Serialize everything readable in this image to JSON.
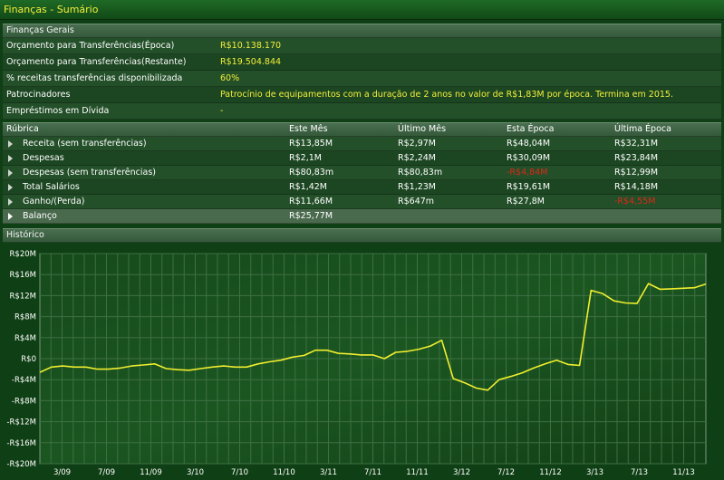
{
  "title": "Finanças - Sumário",
  "general": {
    "header": "Finanças Gerais",
    "rows": [
      {
        "label": "Orçamento para Transferências(Época)",
        "value": "R$10.138.170"
      },
      {
        "label": "Orçamento para Transferências(Restante)",
        "value": "R$19.504.844"
      },
      {
        "label": "% receitas transferências disponibilizada",
        "value": "60%"
      },
      {
        "label": "Patrocinadores",
        "value": "Patrocínio de equipamentos com a duração de 2 anos no valor de R$1,83M por época. Termina em 2015."
      },
      {
        "label": "Empréstimos em Dívida",
        "value": "-"
      }
    ]
  },
  "table": {
    "columns": [
      "Rúbrica",
      "Este Mês",
      "Último Mês",
      "Esta Época",
      "Última Época"
    ],
    "rows": [
      {
        "name": "Receita (sem transferências)",
        "este_mes": "R$13,85M",
        "ultimo_mes": "R$2,97M",
        "esta_epoca": "R$48,04M",
        "ultima_epoca": "R$32,31M"
      },
      {
        "name": "Despesas",
        "este_mes": "R$2,1M",
        "ultimo_mes": "R$2,24M",
        "esta_epoca": "R$30,09M",
        "ultima_epoca": "R$23,84M"
      },
      {
        "name": "Despesas (sem transferências)",
        "este_mes": "R$80,83m",
        "ultimo_mes": "R$80,83m",
        "esta_epoca": "-R$4,84M",
        "ultima_epoca": "R$12,99M"
      },
      {
        "name": "Total Salários",
        "este_mes": "R$1,42M",
        "ultimo_mes": "R$1,23M",
        "esta_epoca": "R$19,61M",
        "ultima_epoca": "R$14,18M"
      },
      {
        "name": "Ganho/(Perda)",
        "este_mes": "R$11,66M",
        "ultimo_mes": "R$647m",
        "esta_epoca": "R$27,8M",
        "ultima_epoca": "-R$4,55M"
      },
      {
        "name": "Balanço",
        "este_mes": "R$25,77M",
        "ultimo_mes": "",
        "esta_epoca": "",
        "ultima_epoca": ""
      }
    ]
  },
  "history_header": "Histórico",
  "colors": {
    "accent_yellow": "#f2ef3a",
    "negative_red": "#d82a1a",
    "line": "#f0ee2e",
    "background": "#0f3f14"
  },
  "chart_data": {
    "type": "line",
    "title": "",
    "xlabel": "",
    "ylabel": "",
    "ylim": [
      -20,
      20
    ],
    "yticks": [
      "R$20M",
      "R$16M",
      "R$12M",
      "R$8M",
      "R$4M",
      "R$0",
      "-R$4M",
      "-R$8M",
      "-R$12M",
      "-R$16M",
      "-R$20M"
    ],
    "xticks": [
      "3/09",
      "7/09",
      "11/09",
      "3/10",
      "7/10",
      "11/10",
      "3/11",
      "7/11",
      "11/11",
      "3/12",
      "7/12",
      "11/12",
      "3/13",
      "7/13",
      "11/13"
    ],
    "grid": true,
    "series": [
      {
        "values": [
          -2.6,
          -1.6,
          -1.4,
          -1.6,
          -1.6,
          -2.0,
          -2.0,
          -1.8,
          -1.4,
          -1.2,
          -1.0,
          -1.9,
          -2.1,
          -2.2,
          -1.9,
          -1.6,
          -1.4,
          -1.6,
          -1.6,
          -1.0,
          -0.6,
          -0.3,
          0.3,
          0.6,
          1.6,
          1.6,
          1.0,
          0.9,
          0.7,
          0.7,
          0.0,
          1.2,
          1.4,
          1.8,
          2.4,
          3.5,
          -3.8,
          -4.6,
          -5.6,
          -6.0,
          -4.0,
          -3.4,
          -2.7,
          -1.8,
          -1.0,
          -0.3,
          -1.1,
          -1.3,
          13.0,
          12.4,
          11.0,
          10.6,
          10.5,
          14.3,
          13.2,
          13.3,
          13.4,
          13.5,
          14.2
        ]
      }
    ]
  }
}
